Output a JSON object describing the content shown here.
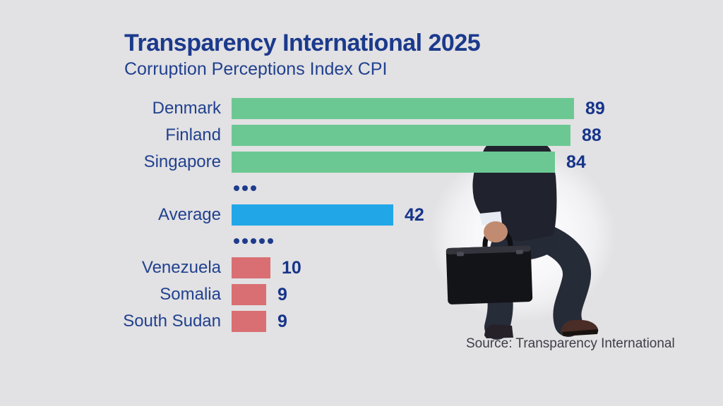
{
  "header": {
    "title": "Transparency International 2025",
    "subtitle": "Corruption Perceptions Index CPI"
  },
  "source_caption": "Source: Transparency International",
  "colors": {
    "background": "#e2e1e3",
    "navy_text": "#1d3c8c",
    "green": "#6cc893",
    "blue": "#21a7e8",
    "red": "#d96f72",
    "source_text": "#3e3e48"
  },
  "illustration": "businessman in dark suit climbing steps carrying black briefcase",
  "chart_data": {
    "type": "bar",
    "orientation": "horizontal",
    "title": "Transparency International 2025",
    "subtitle": "Corruption Perceptions Index CPI",
    "xlabel": "",
    "ylabel": "",
    "xlim": [
      0,
      100
    ],
    "grid": false,
    "legend_position": "none",
    "value_labels": true,
    "categories": [
      "Denmark",
      "Finland",
      "Singapore",
      "Average",
      "Venezuela",
      "Somalia",
      "South Sudan"
    ],
    "values": [
      89,
      88,
      84,
      42,
      10,
      9,
      9
    ],
    "rows": [
      {
        "type": "bar",
        "label": "Denmark",
        "value": 89,
        "color": "green"
      },
      {
        "type": "bar",
        "label": "Finland",
        "value": 88,
        "color": "green"
      },
      {
        "type": "bar",
        "label": "Singapore",
        "value": 84,
        "color": "green"
      },
      {
        "type": "separator",
        "dots": 3
      },
      {
        "type": "bar",
        "label": "Average",
        "value": 42,
        "color": "blue"
      },
      {
        "type": "separator",
        "dots": 5
      },
      {
        "type": "bar",
        "label": "Venezuela",
        "value": 10,
        "color": "red"
      },
      {
        "type": "bar",
        "label": "Somalia",
        "value": 9,
        "color": "red"
      },
      {
        "type": "bar",
        "label": "South Sudan",
        "value": 9,
        "color": "red"
      }
    ]
  }
}
